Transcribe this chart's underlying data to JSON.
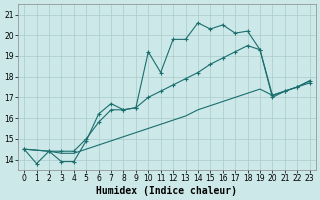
{
  "title": "",
  "xlabel": "Humidex (Indice chaleur)",
  "bg_color": "#cce8e8",
  "grid_color": "#aacccc",
  "line_color": "#1a6e6e",
  "xlim": [
    -0.5,
    23.5
  ],
  "ylim": [
    13.5,
    21.5
  ],
  "xticks": [
    0,
    1,
    2,
    3,
    4,
    5,
    6,
    7,
    8,
    9,
    10,
    11,
    12,
    13,
    14,
    15,
    16,
    17,
    18,
    19,
    20,
    21,
    22,
    23
  ],
  "yticks": [
    14,
    15,
    16,
    17,
    18,
    19,
    20,
    21
  ],
  "line1_x": [
    0,
    1,
    2,
    3,
    4,
    5,
    6,
    7,
    8,
    9,
    10,
    11,
    12,
    13,
    14,
    15,
    16,
    17,
    18,
    19,
    20,
    21,
    22,
    23
  ],
  "line1_y": [
    14.5,
    13.8,
    14.4,
    13.9,
    13.9,
    14.9,
    16.2,
    16.7,
    16.4,
    16.5,
    19.2,
    18.2,
    19.8,
    19.8,
    20.6,
    20.3,
    20.5,
    20.1,
    20.2,
    19.3,
    17.0,
    17.3,
    17.5,
    17.7
  ],
  "line2_x": [
    0,
    2,
    3,
    4,
    5,
    6,
    7,
    8,
    9,
    10,
    11,
    12,
    13,
    14,
    15,
    16,
    17,
    18,
    19,
    20,
    21,
    22,
    23
  ],
  "line2_y": [
    14.5,
    14.4,
    14.4,
    14.4,
    15.0,
    15.8,
    16.4,
    16.4,
    16.5,
    17.0,
    17.3,
    17.6,
    17.9,
    18.2,
    18.6,
    18.9,
    19.2,
    19.5,
    19.3,
    17.1,
    17.3,
    17.5,
    17.8
  ],
  "line3_x": [
    0,
    2,
    3,
    4,
    5,
    6,
    7,
    8,
    9,
    10,
    11,
    12,
    13,
    14,
    15,
    16,
    17,
    18,
    19,
    20,
    21,
    22,
    23
  ],
  "line3_y": [
    14.5,
    14.4,
    14.3,
    14.3,
    14.5,
    14.7,
    14.9,
    15.1,
    15.3,
    15.5,
    15.7,
    15.9,
    16.1,
    16.4,
    16.6,
    16.8,
    17.0,
    17.2,
    17.4,
    17.1,
    17.3,
    17.5,
    17.8
  ]
}
